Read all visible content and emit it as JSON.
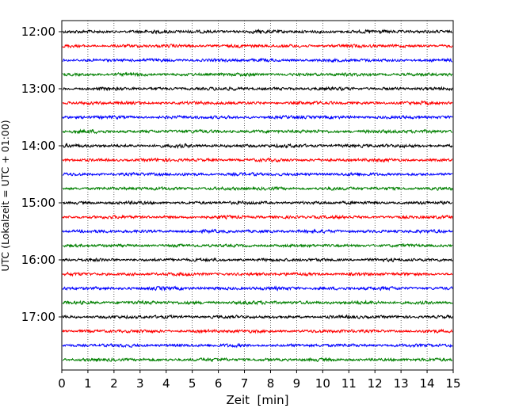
{
  "chart_data": {
    "type": "line",
    "title": "",
    "xlabel": "Zeit  [min]",
    "ylabel": "UTC (Lokalzeit = UTC + 01:00)",
    "xlim": [
      0,
      15
    ],
    "x_ticks": [
      0,
      1,
      2,
      3,
      4,
      5,
      6,
      7,
      8,
      9,
      10,
      11,
      12,
      13,
      14,
      15
    ],
    "x_tick_labels": [
      "0",
      "1",
      "2",
      "3",
      "4",
      "5",
      "6",
      "7",
      "8",
      "9",
      "10",
      "11",
      "12",
      "13",
      "14",
      "15"
    ],
    "y_tick_labels": [
      "12:00",
      "13:00",
      "14:00",
      "15:00",
      "16:00",
      "17:00"
    ],
    "y_tick_rows": [
      0,
      4,
      8,
      12,
      16,
      20
    ],
    "grid": "vertical dotted",
    "legend": "none",
    "trace_colors": [
      "#000000",
      "#ff0000",
      "#0000ff",
      "#008000"
    ],
    "series": [
      {
        "start": "12:00",
        "color": "#000000",
        "amplitude": 0.32
      },
      {
        "start": "12:15",
        "color": "#ff0000",
        "amplitude": 0.3
      },
      {
        "start": "12:30",
        "color": "#0000ff",
        "amplitude": 0.3
      },
      {
        "start": "12:45",
        "color": "#008000",
        "amplitude": 0.3
      },
      {
        "start": "13:00",
        "color": "#000000",
        "amplitude": 0.3
      },
      {
        "start": "13:15",
        "color": "#ff0000",
        "amplitude": 0.3
      },
      {
        "start": "13:30",
        "color": "#0000ff",
        "amplitude": 0.3
      },
      {
        "start": "13:45",
        "color": "#008000",
        "amplitude": 0.32
      },
      {
        "start": "14:00",
        "color": "#000000",
        "amplitude": 0.32
      },
      {
        "start": "14:15",
        "color": "#ff0000",
        "amplitude": 0.3
      },
      {
        "start": "14:30",
        "color": "#0000ff",
        "amplitude": 0.3
      },
      {
        "start": "14:45",
        "color": "#008000",
        "amplitude": 0.3
      },
      {
        "start": "15:00",
        "color": "#000000",
        "amplitude": 0.3
      },
      {
        "start": "15:15",
        "color": "#ff0000",
        "amplitude": 0.3
      },
      {
        "start": "15:30",
        "color": "#0000ff",
        "amplitude": 0.3
      },
      {
        "start": "15:45",
        "color": "#008000",
        "amplitude": 0.28
      },
      {
        "start": "16:00",
        "color": "#000000",
        "amplitude": 0.3
      },
      {
        "start": "16:15",
        "color": "#ff0000",
        "amplitude": 0.3
      },
      {
        "start": "16:30",
        "color": "#0000ff",
        "amplitude": 0.32
      },
      {
        "start": "16:45",
        "color": "#008000",
        "amplitude": 0.32
      },
      {
        "start": "17:00",
        "color": "#000000",
        "amplitude": 0.3
      },
      {
        "start": "17:15",
        "color": "#ff0000",
        "amplitude": 0.3
      },
      {
        "start": "17:30",
        "color": "#0000ff",
        "amplitude": 0.3
      },
      {
        "start": "17:45",
        "color": "#008000",
        "amplitude": 0.3
      }
    ]
  }
}
